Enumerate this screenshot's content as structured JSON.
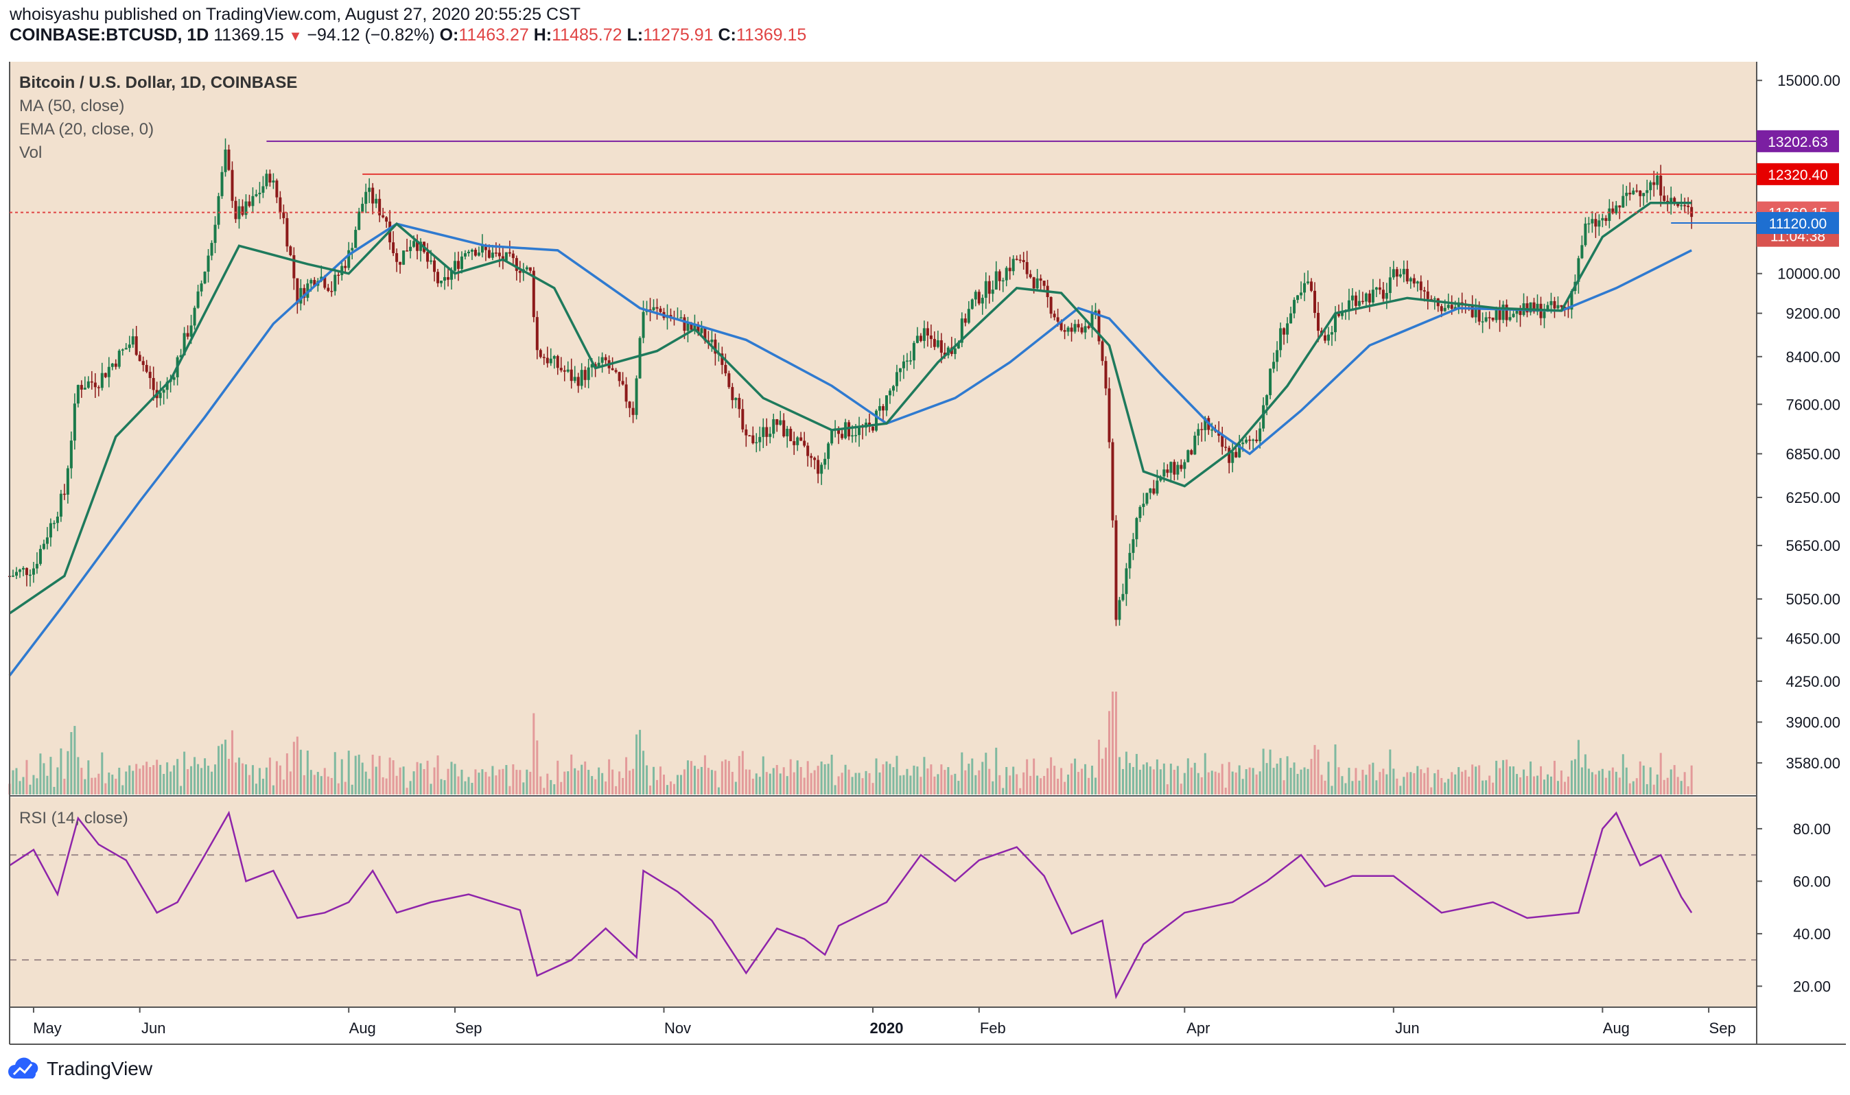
{
  "header": {
    "publisher_line": "whoisyashu published on TradingView.com, August 27, 2020 20:55:25 CST",
    "symbol": "COINBASE:BTCUSD, 1D",
    "last": "11369.15",
    "change": "−94.12 (−0.82%)",
    "open_label": "O:",
    "open": "11463.27",
    "high_label": "H:",
    "high": "11485.72",
    "low_label": "L:",
    "low": "11275.91",
    "close_label": "C:",
    "close": "11369.15"
  },
  "legend": {
    "title": "Bitcoin / U.S. Dollar, 1D, COINBASE",
    "ma": "MA (50, close)",
    "ema": "EMA (20, close, 0)",
    "vol": "Vol",
    "rsi": "RSI (14, close)"
  },
  "footer": {
    "brand": "TradingView"
  },
  "colors": {
    "background": "#f2e1cf",
    "up": "#1a7a4a",
    "down": "#8c1a1a",
    "ma_line": "#2f7ad0",
    "ema_line": "#1e7a5c",
    "rsi_line": "#8e24aa",
    "rsi_band": "#e8c6d6",
    "resistance_purple": "#7b1fa2",
    "resistance_red": "#e53935",
    "last_price": "#e04444",
    "support_blue": "#1e6fd1"
  },
  "chart_data": [
    {
      "type": "candlestick",
      "title": "Bitcoin / U.S. Dollar, 1D, COINBASE",
      "y_scale": "log",
      "ylim": [
        3350,
        15600
      ],
      "y_ticks": [
        "15000.00",
        "10000.00",
        "9200.00",
        "8400.00",
        "7600.00",
        "6850.00",
        "6250.00",
        "5650.00",
        "5050.00",
        "4650.00",
        "4250.00",
        "3900.00",
        "3580.00"
      ],
      "x_ticks": [
        "May",
        "Jun",
        "Aug",
        "Sep",
        "Nov",
        "2020",
        "Feb",
        "Apr",
        "Jun",
        "Aug",
        "Sep"
      ],
      "x_range": [
        "2019-04-24",
        "2020-09-15"
      ],
      "price_path": [
        [
          "2019-04-24",
          5300
        ],
        [
          "2019-05-01",
          5400
        ],
        [
          "2019-05-10",
          6300
        ],
        [
          "2019-05-14",
          7900
        ],
        [
          "2019-05-20",
          8000
        ],
        [
          "2019-05-30",
          8700
        ],
        [
          "2019-06-06",
          7700
        ],
        [
          "2019-06-10",
          8000
        ],
        [
          "2019-06-17",
          9200
        ],
        [
          "2019-06-22",
          10700
        ],
        [
          "2019-06-26",
          12800
        ],
        [
          "2019-06-29",
          11300
        ],
        [
          "2019-07-03",
          11500
        ],
        [
          "2019-07-09",
          12300
        ],
        [
          "2019-07-13",
          11200
        ],
        [
          "2019-07-17",
          9500
        ],
        [
          "2019-07-23",
          10000
        ],
        [
          "2019-07-27",
          9700
        ],
        [
          "2019-08-01",
          10400
        ],
        [
          "2019-08-06",
          11900
        ],
        [
          "2019-08-12",
          11200
        ],
        [
          "2019-08-15",
          10200
        ],
        [
          "2019-08-20",
          10800
        ],
        [
          "2019-08-28",
          9700
        ],
        [
          "2019-09-05",
          10600
        ],
        [
          "2019-09-19",
          10200
        ],
        [
          "2019-09-23",
          10000
        ],
        [
          "2019-09-25",
          8500
        ],
        [
          "2019-10-06",
          8000
        ],
        [
          "2019-10-15",
          8300
        ],
        [
          "2019-10-23",
          7500
        ],
        [
          "2019-10-26",
          9300
        ],
        [
          "2019-11-01",
          9200
        ],
        [
          "2019-11-12",
          8800
        ],
        [
          "2019-11-18",
          8400
        ],
        [
          "2019-11-25",
          7000
        ],
        [
          "2019-12-04",
          7300
        ],
        [
          "2019-12-17",
          6600
        ],
        [
          "2019-12-20",
          7200
        ],
        [
          "2019-12-31",
          7200
        ],
        [
          "2020-01-08",
          8000
        ],
        [
          "2020-01-15",
          8800
        ],
        [
          "2020-01-24",
          8500
        ],
        [
          "2020-01-30",
          9400
        ],
        [
          "2020-02-12",
          10300
        ],
        [
          "2020-02-20",
          9600
        ],
        [
          "2020-02-26",
          8800
        ],
        [
          "2020-03-06",
          9100
        ],
        [
          "2020-03-09",
          7900
        ],
        [
          "2020-03-12",
          4900
        ],
        [
          "2020-03-15",
          5300
        ],
        [
          "2020-03-19",
          6200
        ],
        [
          "2020-03-27",
          6600
        ],
        [
          "2020-04-01",
          6700
        ],
        [
          "2020-04-07",
          7300
        ],
        [
          "2020-04-14",
          6800
        ],
        [
          "2020-04-22",
          7100
        ],
        [
          "2020-04-29",
          8800
        ],
        [
          "2020-05-07",
          9800
        ],
        [
          "2020-05-11",
          8700
        ],
        [
          "2020-05-20",
          9500
        ],
        [
          "2020-05-30",
          9600
        ],
        [
          "2020-06-02",
          10100
        ],
        [
          "2020-06-15",
          9400
        ],
        [
          "2020-06-26",
          9200
        ],
        [
          "2020-07-10",
          9250
        ],
        [
          "2020-07-22",
          9300
        ],
        [
          "2020-07-27",
          11000
        ],
        [
          "2020-08-02",
          11200
        ],
        [
          "2020-08-10",
          11900
        ],
        [
          "2020-08-17",
          12100
        ],
        [
          "2020-08-21",
          11600
        ],
        [
          "2020-08-27",
          11369
        ]
      ],
      "ma50_path": [
        [
          "2019-04-24",
          4300
        ],
        [
          "2019-05-10",
          5000
        ],
        [
          "2019-06-01",
          6200
        ],
        [
          "2019-06-20",
          7400
        ],
        [
          "2019-07-10",
          9000
        ],
        [
          "2019-08-01",
          10400
        ],
        [
          "2019-08-15",
          11100
        ],
        [
          "2019-09-10",
          10600
        ],
        [
          "2019-10-01",
          10500
        ],
        [
          "2019-10-25",
          9300
        ],
        [
          "2019-11-25",
          8700
        ],
        [
          "2019-12-20",
          7900
        ],
        [
          "2020-01-05",
          7300
        ],
        [
          "2020-01-25",
          7700
        ],
        [
          "2020-02-10",
          8300
        ],
        [
          "2020-03-01",
          9300
        ],
        [
          "2020-03-10",
          9100
        ],
        [
          "2020-03-25",
          8100
        ],
        [
          "2020-04-10",
          7200
        ],
        [
          "2020-04-20",
          6850
        ],
        [
          "2020-05-05",
          7500
        ],
        [
          "2020-05-25",
          8600
        ],
        [
          "2020-06-20",
          9300
        ],
        [
          "2020-07-20",
          9250
        ],
        [
          "2020-08-05",
          9700
        ],
        [
          "2020-08-27",
          10500
        ]
      ],
      "ema20_path": [
        [
          "2019-04-24",
          4900
        ],
        [
          "2019-05-10",
          5300
        ],
        [
          "2019-05-25",
          7100
        ],
        [
          "2019-06-10",
          8000
        ],
        [
          "2019-06-30",
          10600
        ],
        [
          "2019-07-20",
          10200
        ],
        [
          "2019-08-01",
          10000
        ],
        [
          "2019-08-15",
          11100
        ],
        [
          "2019-09-01",
          10000
        ],
        [
          "2019-09-15",
          10300
        ],
        [
          "2019-09-30",
          9700
        ],
        [
          "2019-10-12",
          8200
        ],
        [
          "2019-10-30",
          8500
        ],
        [
          "2019-11-10",
          8900
        ],
        [
          "2019-11-30",
          7700
        ],
        [
          "2019-12-20",
          7200
        ],
        [
          "2020-01-05",
          7300
        ],
        [
          "2020-01-20",
          8300
        ],
        [
          "2020-02-12",
          9700
        ],
        [
          "2020-02-25",
          9600
        ],
        [
          "2020-03-10",
          8600
        ],
        [
          "2020-03-20",
          6600
        ],
        [
          "2020-04-01",
          6400
        ],
        [
          "2020-04-15",
          6900
        ],
        [
          "2020-05-01",
          7900
        ],
        [
          "2020-05-15",
          9200
        ],
        [
          "2020-06-05",
          9500
        ],
        [
          "2020-07-01",
          9300
        ],
        [
          "2020-07-20",
          9250
        ],
        [
          "2020-08-01",
          10800
        ],
        [
          "2020-08-15",
          11600
        ],
        [
          "2020-08-27",
          11600
        ]
      ],
      "horizontal_levels": [
        {
          "value": 13202.63,
          "label": "13202.63",
          "kind": "resistance-purple"
        },
        {
          "value": 12320.4,
          "label": "12320.40",
          "kind": "resistance-red"
        },
        {
          "value": 11369.15,
          "label": "11369.15",
          "kind": "last-price",
          "countdown": "11:04:38"
        },
        {
          "value": 11120.0,
          "label": "11120.00",
          "kind": "support-blue"
        }
      ]
    },
    {
      "type": "line",
      "title": "RSI (14, close)",
      "ylim": [
        12,
        92
      ],
      "y_ticks": [
        "80.00",
        "60.00",
        "40.00",
        "20.00"
      ],
      "band": [
        30,
        70
      ],
      "path": [
        [
          "2019-04-24",
          66
        ],
        [
          "2019-05-01",
          72
        ],
        [
          "2019-05-08",
          55
        ],
        [
          "2019-05-14",
          84
        ],
        [
          "2019-05-20",
          74
        ],
        [
          "2019-05-28",
          68
        ],
        [
          "2019-06-06",
          48
        ],
        [
          "2019-06-12",
          52
        ],
        [
          "2019-06-20",
          70
        ],
        [
          "2019-06-27",
          86
        ],
        [
          "2019-07-02",
          60
        ],
        [
          "2019-07-10",
          64
        ],
        [
          "2019-07-17",
          46
        ],
        [
          "2019-07-25",
          48
        ],
        [
          "2019-08-01",
          52
        ],
        [
          "2019-08-08",
          64
        ],
        [
          "2019-08-15",
          48
        ],
        [
          "2019-08-25",
          52
        ],
        [
          "2019-09-05",
          55
        ],
        [
          "2019-09-20",
          49
        ],
        [
          "2019-09-25",
          24
        ],
        [
          "2019-10-05",
          30
        ],
        [
          "2019-10-15",
          42
        ],
        [
          "2019-10-24",
          31
        ],
        [
          "2019-10-26",
          64
        ],
        [
          "2019-11-05",
          56
        ],
        [
          "2019-11-15",
          45
        ],
        [
          "2019-11-25",
          25
        ],
        [
          "2019-12-04",
          42
        ],
        [
          "2019-12-12",
          38
        ],
        [
          "2019-12-18",
          32
        ],
        [
          "2019-12-22",
          43
        ],
        [
          "2020-01-05",
          52
        ],
        [
          "2020-01-15",
          70
        ],
        [
          "2020-01-25",
          60
        ],
        [
          "2020-02-01",
          68
        ],
        [
          "2020-02-12",
          73
        ],
        [
          "2020-02-20",
          62
        ],
        [
          "2020-02-28",
          40
        ],
        [
          "2020-03-08",
          45
        ],
        [
          "2020-03-12",
          16
        ],
        [
          "2020-03-20",
          36
        ],
        [
          "2020-04-01",
          48
        ],
        [
          "2020-04-15",
          52
        ],
        [
          "2020-04-25",
          60
        ],
        [
          "2020-05-05",
          70
        ],
        [
          "2020-05-12",
          58
        ],
        [
          "2020-05-20",
          62
        ],
        [
          "2020-06-01",
          62
        ],
        [
          "2020-06-15",
          48
        ],
        [
          "2020-06-30",
          52
        ],
        [
          "2020-07-10",
          46
        ],
        [
          "2020-07-25",
          48
        ],
        [
          "2020-08-01",
          80
        ],
        [
          "2020-08-05",
          86
        ],
        [
          "2020-08-12",
          66
        ],
        [
          "2020-08-18",
          70
        ],
        [
          "2020-08-24",
          54
        ],
        [
          "2020-08-27",
          48
        ]
      ]
    }
  ]
}
